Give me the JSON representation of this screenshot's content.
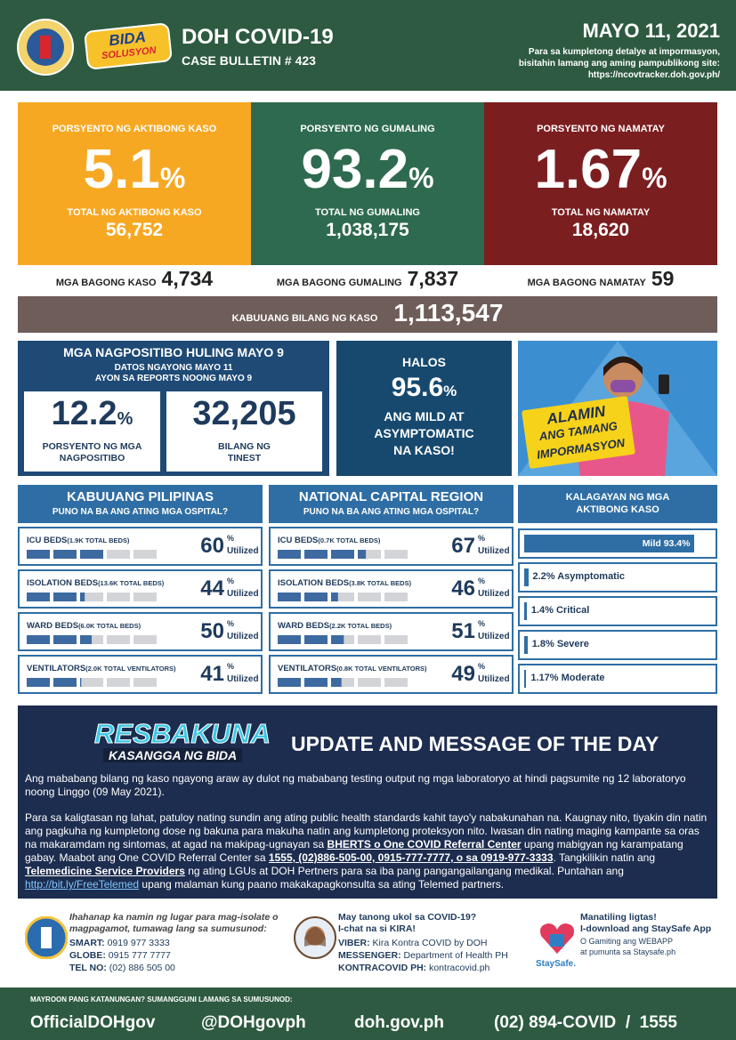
{
  "header": {
    "logo_text": [
      "BIDA",
      "SOLUSYON"
    ],
    "title": "DOH COVID-19",
    "bulletin": "CASE BULLETIN # 423",
    "date": "MAYO 11, 2021",
    "info": [
      "Para sa kumpletong detalye at impormasyon,",
      "bisitahin lamang ang aming pampublikong site:",
      "https://ncovtracker.doh.gov.ph/"
    ]
  },
  "rates": [
    {
      "label": "PORSYENTO NG AKTIBONG KASO",
      "value": "5.1",
      "unit": "%",
      "total_label": "TOTAL NG AKTIBONG KASO",
      "total": "56,752",
      "color": "#f7a823"
    },
    {
      "label": "PORSYENTO NG GUMALING",
      "value": "93.2",
      "unit": "%",
      "total_label": "TOTAL NG GUMALING",
      "total": "1,038,175",
      "color": "#2e6a4f"
    },
    {
      "label": "PORSYENTO NG NAMATAY",
      "value": "1.67",
      "unit": "%",
      "total_label": "TOTAL NG NAMATAY",
      "total": "18,620",
      "color": "#7b1e20"
    }
  ],
  "new_counts": [
    {
      "label": "MGA BAGONG KASO",
      "value": "4,734"
    },
    {
      "label": "MGA BAGONG GUMALING",
      "value": "7,837"
    },
    {
      "label": "MGA BAGONG NAMATAY",
      "value": "59"
    }
  ],
  "total": {
    "label": "KABUUANG BILANG NG KASO",
    "value": "1,113,547"
  },
  "positivity": {
    "title": "MGA NAGPOSITIBO HULING MAYO 9",
    "subtitle": [
      "DATOS NGAYONG MAYO 11",
      "AYON SA REPORTS NOONG MAYO 9"
    ],
    "rate": "12.2",
    "unit": "%",
    "rate_label": [
      "PORSYENTO NG MGA",
      "NAGPOSITIBO"
    ],
    "tests": "32,205",
    "tests_label": [
      "BILANG NG",
      "TINEST"
    ]
  },
  "mild": {
    "lead": "HALOS",
    "value": "95.6",
    "unit": "%",
    "text": [
      "ANG MILD AT",
      "ASYMPTOMATIC",
      "NA KASO!"
    ]
  },
  "promo": {
    "text": [
      "ALAMIN",
      "ANG TAMANG",
      "IMPORMASYON"
    ]
  },
  "hospitals": [
    {
      "title": "KABUUANG PILIPINAS",
      "subtitle": "PUNO NA BA ANG ATING MGA OSPITAL?",
      "rows": [
        {
          "label": "ICU BEDS",
          "detail": "(1.9K TOTAL BEDS)",
          "value": 60,
          "unit": "%",
          "note": "Utilized"
        },
        {
          "label": "ISOLATION BEDS",
          "detail": "(13.6K TOTAL BEDS)",
          "value": 44,
          "unit": "%",
          "note": "Utilized"
        },
        {
          "label": "WARD BEDS",
          "detail": "(6.0K TOTAL BEDS)",
          "value": 50,
          "unit": "%",
          "note": "Utilized"
        },
        {
          "label": "VENTILATORS",
          "detail": "(2.0K TOTAL VENTILATORS)",
          "value": 41,
          "unit": "%",
          "note": "Utilized"
        }
      ]
    },
    {
      "title": "NATIONAL CAPITAL REGION",
      "subtitle": "PUNO NA BA ANG ATING MGA OSPITAL?",
      "rows": [
        {
          "label": "ICU BEDS",
          "detail": "(0.7K TOTAL BEDS)",
          "value": 67,
          "unit": "%",
          "note": "Utilized"
        },
        {
          "label": "ISOLATION BEDS",
          "detail": "(3.8K TOTAL BEDS)",
          "value": 46,
          "unit": "%",
          "note": "Utilized"
        },
        {
          "label": "WARD BEDS",
          "detail": "(2.2K TOTAL BEDS)",
          "value": 51,
          "unit": "%",
          "note": "Utilized"
        },
        {
          "label": "VENTILATORS",
          "detail": "(0.8K TOTAL VENTILATORS)",
          "value": 49,
          "unit": "%",
          "note": "Utilized"
        }
      ]
    }
  ],
  "status": {
    "title": [
      "KALAGAYAN NG MGA",
      "AKTIBONG KASO"
    ],
    "items": [
      {
        "label": "Mild 93.4%",
        "value": 93.4
      },
      {
        "label": "2.2% Asymptomatic",
        "value": 2.2
      },
      {
        "label": "1.4% Critical",
        "value": 1.4
      },
      {
        "label": "1.8% Severe",
        "value": 1.8
      },
      {
        "label": "1.17% Moderate",
        "value": 1.17
      }
    ]
  },
  "message": {
    "logo": [
      "RESBAKUNA",
      "KASANGGA NG BIDA"
    ],
    "title": "UPDATE AND MESSAGE OF THE DAY",
    "paragraphs": [
      [
        {
          "text": "Ang mababang bilang ng kaso ngayong araw ay dulot ng mababang testing output ng mga laboratoryo at hindi pagsumite ng 12 laboratoryo noong Linggo (09 May 2021)."
        }
      ],
      [
        {
          "text": "Para sa kaligtasan ng lahat, patuloy nating sundin ang ating public health standards kahit tayo'y nabakunahan na. Kaugnay nito, tiyakin din natin ang pagkuha ng kumpletong dose ng bakuna para makuha natin ang kumpletong proteksyon nito. Iwasan din nating maging kampante sa oras na makaramdam ng sintomas, at agad na makipag-ugnayan sa "
        },
        {
          "text": "BHERTS o One COVID Referral Center",
          "strong": true
        },
        {
          "text": " upang mabigyan ng karampatang gabay. Maabot ang One COVID Referral Center sa "
        },
        {
          "text": "1555, (02)886-505-00, 0915-777-7777, o sa 0919-977-3333",
          "strong": true
        },
        {
          "text": ". Tangkilikin natin ang "
        },
        {
          "text": "Telemedicine Service Providers",
          "strong": true
        },
        {
          "text": " ng ating LGUs at DOH Pertners para sa iba pang pangangailangang medikal. Puntahan ang "
        },
        {
          "text": "http://bit.ly/FreeTelemed",
          "link": true
        },
        {
          "text": " upang malaman kung paano makakapagkonsulta sa ating Telemed partners."
        }
      ]
    ]
  },
  "contacts": [
    {
      "intro": [
        "Ihahanap ka namin ng lugar para mag-isolate o",
        "magpagamot, tumawag lang sa sumusunod:"
      ],
      "lines": [
        {
          "label": "SMART:",
          "value": "0919 977 3333"
        },
        {
          "label": "GLOBE:",
          "value": "0915 777 7777"
        },
        {
          "label": "TEL NO:",
          "value": "(02) 886 505 00"
        }
      ]
    },
    {
      "intro": [
        "May tanong ukol sa COVID-19?",
        "I-chat na si KIRA!"
      ],
      "lines": [
        {
          "label": "VIBER:",
          "value": "Kira Kontra COVID by DOH"
        },
        {
          "label": "MESSENGER:",
          "value": "Department of Health PH"
        },
        {
          "label": "KONTRACOVID PH:",
          "value": "kontracovid.ph"
        }
      ]
    },
    {
      "intro": [
        "Manatiling ligtas!",
        "I-download ang StaySafe App"
      ],
      "notes": [
        "O Gamiting ang WEBAPP",
        "at pumunta sa Staysafe.ph"
      ],
      "logo": "StaySafe."
    }
  ],
  "footer": {
    "question": "MAYROON PANG KATANUNGAN? SUMANGGUNI LAMANG SA SUMUSUNOD:",
    "items": [
      "OfficialDOHgov",
      "@DOHgovph",
      "doh.gov.ph",
      "(02) 894-COVID  /  1555"
    ]
  }
}
